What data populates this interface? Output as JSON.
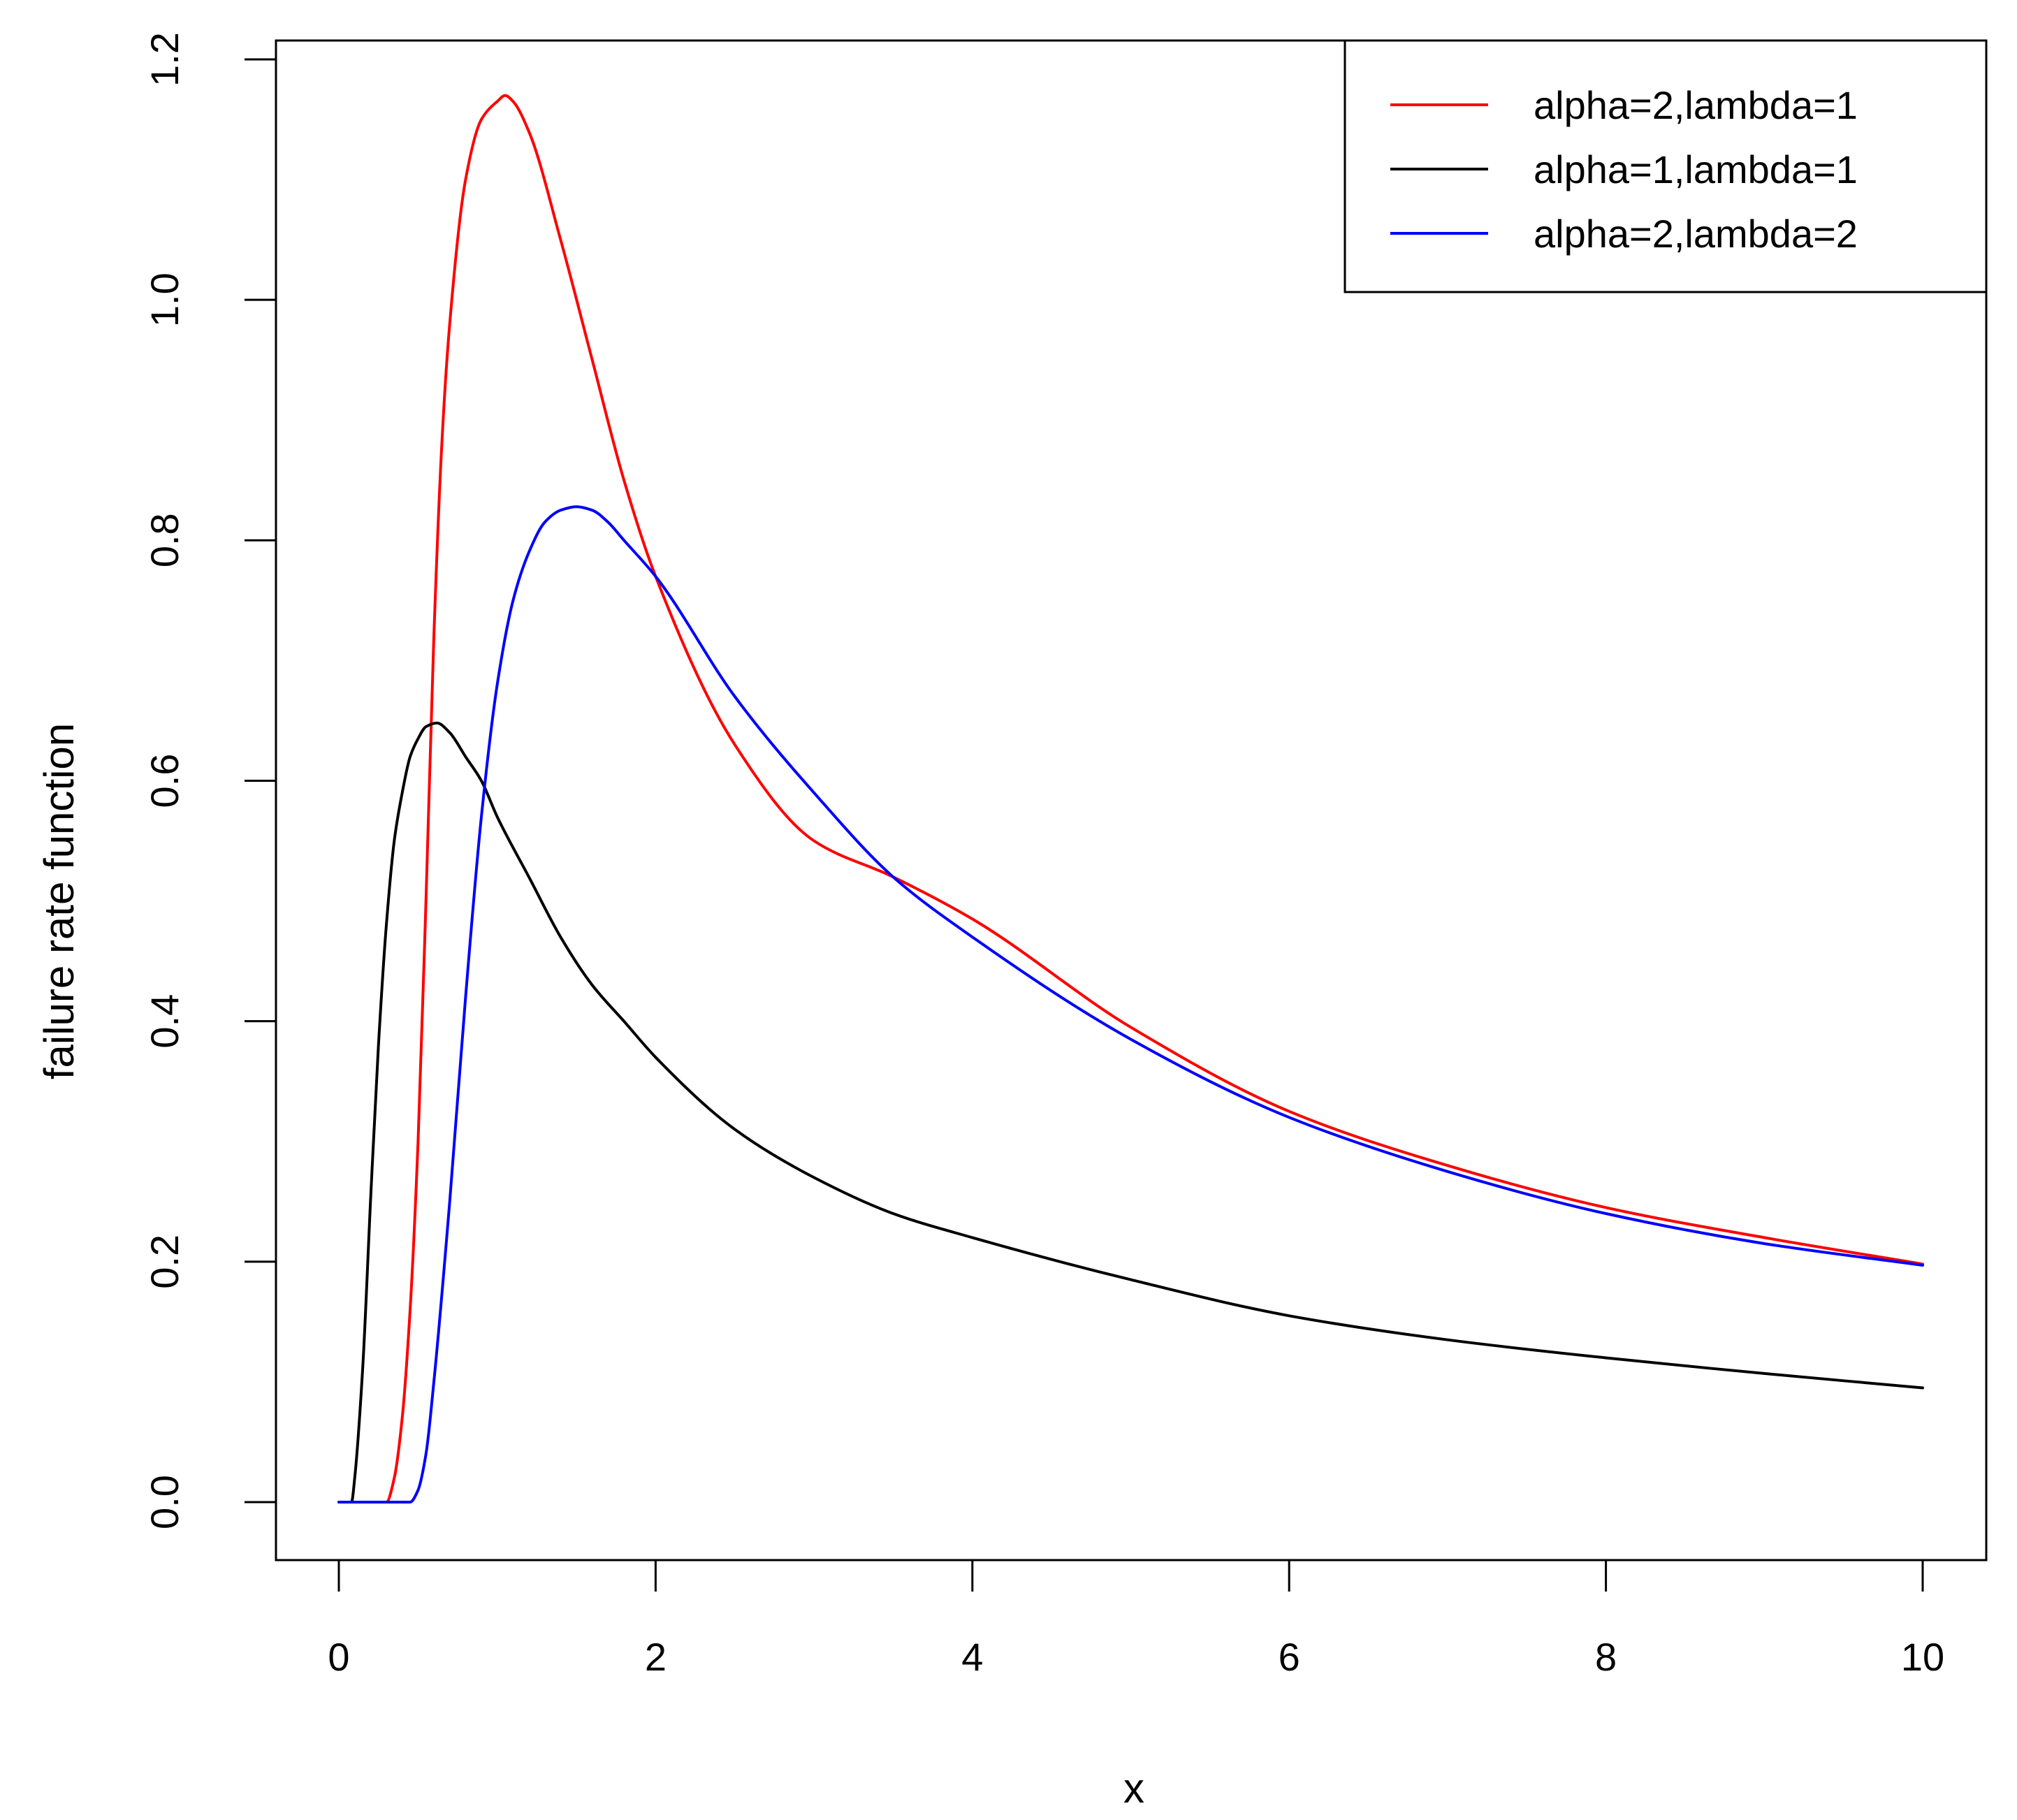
{
  "chart_data": {
    "type": "line",
    "title": "",
    "xlabel": "x",
    "ylabel": "failure rate function",
    "xlim": [
      0,
      10
    ],
    "ylim": [
      0,
      1.2
    ],
    "x_ticks": [
      0,
      2,
      4,
      6,
      8,
      10
    ],
    "x_tick_labels": [
      "0",
      "2",
      "4",
      "6",
      "8",
      "10"
    ],
    "y_ticks": [
      0,
      0.2,
      0.4,
      0.6,
      0.8,
      1.0,
      1.2
    ],
    "y_tick_labels": [
      "0.0",
      "0.2",
      "0.4",
      "0.6",
      "0.8",
      "1.0",
      "1.2"
    ],
    "grid": false,
    "legend_position": "top-right",
    "series": [
      {
        "name": "alpha=2,lambda=1",
        "color": "#ff0000",
        "x": [
          0,
          0.3,
          0.35,
          0.4,
          0.45,
          0.5,
          0.55,
          0.6,
          0.65,
          0.7,
          0.8,
          0.9,
          1.0,
          1.05,
          1.1,
          1.2,
          1.4,
          1.6,
          1.8,
          2.0,
          2.5,
          3.0,
          3.5,
          4.0,
          5.0,
          6.0,
          7.0,
          8.0,
          9.0,
          10.0
        ],
        "y": [
          0,
          0,
          0.02,
          0.07,
          0.16,
          0.3,
          0.5,
          0.72,
          0.88,
          0.98,
          1.1,
          1.15,
          1.165,
          1.17,
          1.165,
          1.14,
          1.05,
          0.95,
          0.85,
          0.77,
          0.63,
          0.55,
          0.52,
          0.485,
          0.395,
          0.325,
          0.28,
          0.245,
          0.22,
          0.198
        ]
      },
      {
        "name": "alpha=1,lambda=1",
        "color": "#000000",
        "x": [
          0,
          0.08,
          0.1,
          0.15,
          0.2,
          0.25,
          0.3,
          0.35,
          0.4,
          0.45,
          0.5,
          0.55,
          0.62,
          0.7,
          0.8,
          0.9,
          1.0,
          1.2,
          1.4,
          1.6,
          1.8,
          2.0,
          2.5,
          3.0,
          3.5,
          4.0,
          5.0,
          6.0,
          7.0,
          8.0,
          9.0,
          10.0
        ],
        "y": [
          0,
          0,
          0.02,
          0.11,
          0.25,
          0.38,
          0.48,
          0.55,
          0.59,
          0.62,
          0.635,
          0.645,
          0.648,
          0.64,
          0.62,
          0.6,
          0.57,
          0.52,
          0.47,
          0.43,
          0.4,
          0.37,
          0.31,
          0.27,
          0.24,
          0.22,
          0.185,
          0.155,
          0.135,
          0.12,
          0.107,
          0.095
        ]
      },
      {
        "name": "alpha=2,lambda=2",
        "color": "#0000ff",
        "x": [
          0,
          0.45,
          0.5,
          0.55,
          0.6,
          0.7,
          0.8,
          0.9,
          1.0,
          1.1,
          1.2,
          1.3,
          1.4,
          1.5,
          1.6,
          1.7,
          1.8,
          2.0,
          2.5,
          3.0,
          3.5,
          4.0,
          5.0,
          6.0,
          7.0,
          8.0,
          9.0,
          10.0
        ],
        "y": [
          0,
          0,
          0.01,
          0.04,
          0.1,
          0.25,
          0.42,
          0.57,
          0.68,
          0.75,
          0.79,
          0.815,
          0.825,
          0.828,
          0.825,
          0.815,
          0.8,
          0.77,
          0.67,
          0.59,
          0.52,
          0.47,
          0.385,
          0.32,
          0.275,
          0.24,
          0.215,
          0.197
        ]
      }
    ]
  }
}
